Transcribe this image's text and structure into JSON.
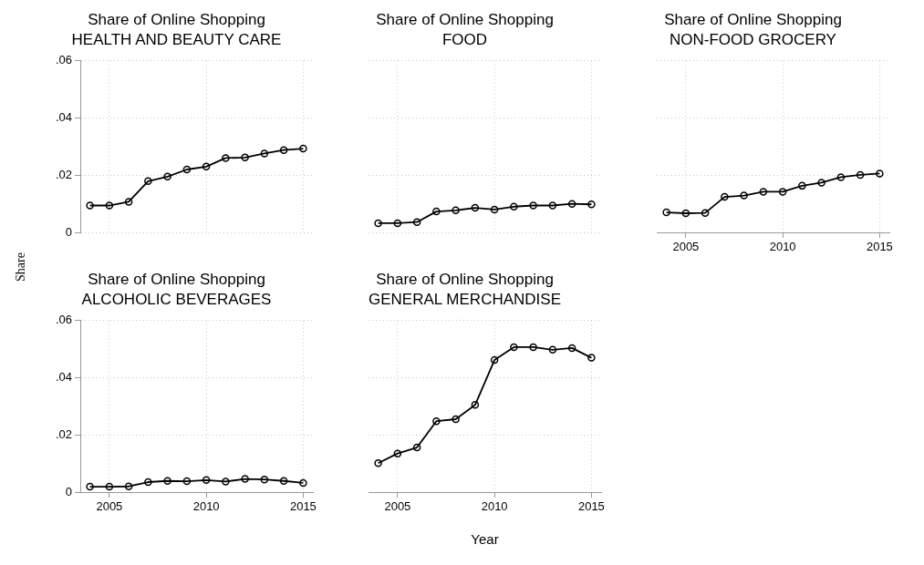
{
  "chart_data": [
    {
      "type": "line",
      "title": "Share of Online Shopping",
      "subtitle": "HEALTH AND BEAUTY CARE",
      "ylabel": "Share",
      "x": [
        2004,
        2005,
        2006,
        2007,
        2008,
        2009,
        2010,
        2011,
        2012,
        2013,
        2014,
        2015
      ],
      "values": [
        0.0094,
        0.0094,
        0.0107,
        0.0179,
        0.0195,
        0.022,
        0.023,
        0.026,
        0.0262,
        0.0276,
        0.0288,
        0.0293
      ],
      "color": "#000000",
      "marker": "circle",
      "grid": true,
      "xlim": [
        2003.5,
        2015.5
      ],
      "xticks": [
        2005,
        2010,
        2015
      ],
      "ylim": [
        0,
        0.06
      ],
      "yticks": [
        0,
        {
          "value": 0.02,
          "label": ".02"
        },
        {
          "value": 0.04,
          "label": ".04"
        },
        {
          "value": 0.06,
          "label": ".06"
        }
      ],
      "tick_labels": "y"
    },
    {
      "type": "line",
      "title": "Share of Online Shopping",
      "subtitle": "FOOD",
      "x": [
        2004,
        2005,
        2006,
        2007,
        2008,
        2009,
        2010,
        2011,
        2012,
        2013,
        2014,
        2015
      ],
      "values": [
        0.0032,
        0.0032,
        0.0036,
        0.0073,
        0.0077,
        0.0086,
        0.008,
        0.009,
        0.0094,
        0.0094,
        0.01,
        0.0098
      ],
      "color": "#000000",
      "marker": "circle",
      "grid": true,
      "xlim": [
        2003.5,
        2015.5
      ],
      "xticks": [
        2005,
        2010,
        2015
      ],
      "ylim": [
        0,
        0.06
      ],
      "yticks": [
        0,
        0.02,
        0.04,
        0.06
      ],
      "tick_labels": false
    },
    {
      "type": "line",
      "title": "Share of Online Shopping",
      "subtitle": "NON-FOOD GROCERY",
      "x": [
        2004,
        2005,
        2006,
        2007,
        2008,
        2009,
        2010,
        2011,
        2012,
        2013,
        2014,
        2015
      ],
      "values": [
        0.007,
        0.0067,
        0.0068,
        0.0124,
        0.0129,
        0.0142,
        0.0142,
        0.0163,
        0.0174,
        0.0193,
        0.0201,
        0.0206
      ],
      "color": "#000000",
      "marker": "circle",
      "grid": true,
      "xlim": [
        2003.5,
        2015.5
      ],
      "xticks": [
        2005,
        2010,
        2015
      ],
      "ylim": [
        0,
        0.06
      ],
      "yticks": [
        0,
        0.02,
        0.04,
        0.06
      ],
      "tick_labels": "x"
    },
    {
      "type": "line",
      "title": "Share of Online Shopping",
      "subtitle": "ALCOHOLIC BEVERAGES",
      "x": [
        2004,
        2005,
        2006,
        2007,
        2008,
        2009,
        2010,
        2011,
        2012,
        2013,
        2014,
        2015
      ],
      "values": [
        0.0019,
        0.0019,
        0.002,
        0.0035,
        0.0039,
        0.0038,
        0.0042,
        0.0037,
        0.0046,
        0.0044,
        0.0039,
        0.0032
      ],
      "color": "#000000",
      "marker": "circle",
      "grid": true,
      "xlim": [
        2003.5,
        2015.5
      ],
      "xticks": [
        2005,
        2010,
        2015
      ],
      "ylim": [
        0,
        0.06
      ],
      "yticks": [
        0,
        {
          "value": 0.02,
          "label": ".02"
        },
        {
          "value": 0.04,
          "label": ".04"
        },
        {
          "value": 0.06,
          "label": ".06"
        }
      ]
    },
    {
      "type": "line",
      "title": "Share of Online Shopping",
      "subtitle": "GENERAL MERCHANDISE",
      "xlabel": "Year",
      "x": [
        2004,
        2005,
        2006,
        2007,
        2008,
        2009,
        2010,
        2011,
        2012,
        2013,
        2014,
        2015
      ],
      "values": [
        0.0101,
        0.0135,
        0.0156,
        0.0248,
        0.0255,
        0.0305,
        0.0462,
        0.0507,
        0.0507,
        0.0498,
        0.0504,
        0.047
      ],
      "color": "#000000",
      "marker": "circle",
      "grid": true,
      "xlim": [
        2003.5,
        2015.5
      ],
      "xticks": [
        2005,
        2010,
        2015
      ],
      "ylim": [
        0,
        0.06
      ],
      "yticks": [
        0,
        0.02,
        0.04,
        0.06
      ],
      "tick_labels": "x"
    }
  ]
}
